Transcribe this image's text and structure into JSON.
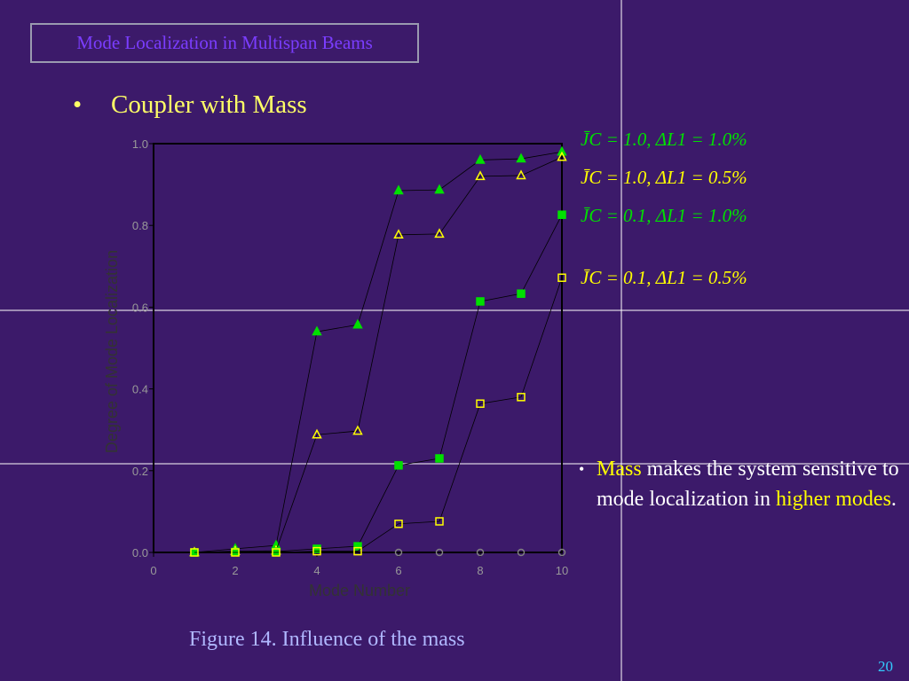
{
  "header": {
    "title": "Mode Localization in Multispan Beams"
  },
  "bullet": "Coupler with Mass",
  "chart_data": {
    "type": "line",
    "x_label": "Mode Number",
    "y_label": "Degree of Mode Localization",
    "x": [
      1,
      2,
      3,
      4,
      5,
      6,
      7,
      8,
      9,
      10
    ],
    "xlim": [
      0,
      10
    ],
    "xticks": [
      0,
      2,
      4,
      6,
      8,
      10
    ],
    "ylim": [
      0,
      1
    ],
    "yticks": [
      {
        "value": 0,
        "label": "0.0"
      },
      0.2,
      0.4,
      0.6,
      0.8,
      {
        "value": 1,
        "label": "1.0"
      }
    ],
    "line_color": "#000000",
    "series": [
      {
        "name": "J̄C = 1.0,  ΔL1 = 1.0%",
        "color": "#00e000",
        "marker": "triangle",
        "filled": true,
        "values": [
          0,
          0.009,
          0.017,
          0.54,
          0.557,
          0.885,
          0.887,
          0.96,
          0.963,
          0.98
        ]
      },
      {
        "name": "J̄C = 1.0,  ΔL1 = 0.5%",
        "color": "#ffff00",
        "marker": "triangle",
        "filled": false,
        "values": [
          0,
          0.003,
          0.004,
          0.288,
          0.297,
          0.777,
          0.779,
          0.92,
          0.922,
          0.967
        ]
      },
      {
        "name": "J̄C = 0.1,  ΔL1 = 1.0%",
        "color": "#00e000",
        "marker": "square",
        "filled": true,
        "values": [
          0,
          0.001,
          0.002,
          0.009,
          0.015,
          0.213,
          0.23,
          0.614,
          0.633,
          0.826
        ]
      },
      {
        "name": "J̄C = 0.1,  ΔL1 = 0.5%",
        "color": "#ffff00",
        "marker": "square",
        "filled": false,
        "values": [
          0,
          0,
          0,
          0.003,
          0.003,
          0.07,
          0.076,
          0.364,
          0.38,
          0.672
        ]
      },
      {
        "color": "#808080",
        "marker": "circle",
        "filled": false,
        "values": [
          null,
          null,
          null,
          null,
          null,
          0,
          0,
          0,
          0,
          0
        ]
      }
    ]
  },
  "caption": "Figure 14. Influence of the mass",
  "note": {
    "parts": [
      "Mass",
      " makes the system sensitive to mode localization in ",
      "higher modes",
      "."
    ]
  },
  "page_number": "20"
}
